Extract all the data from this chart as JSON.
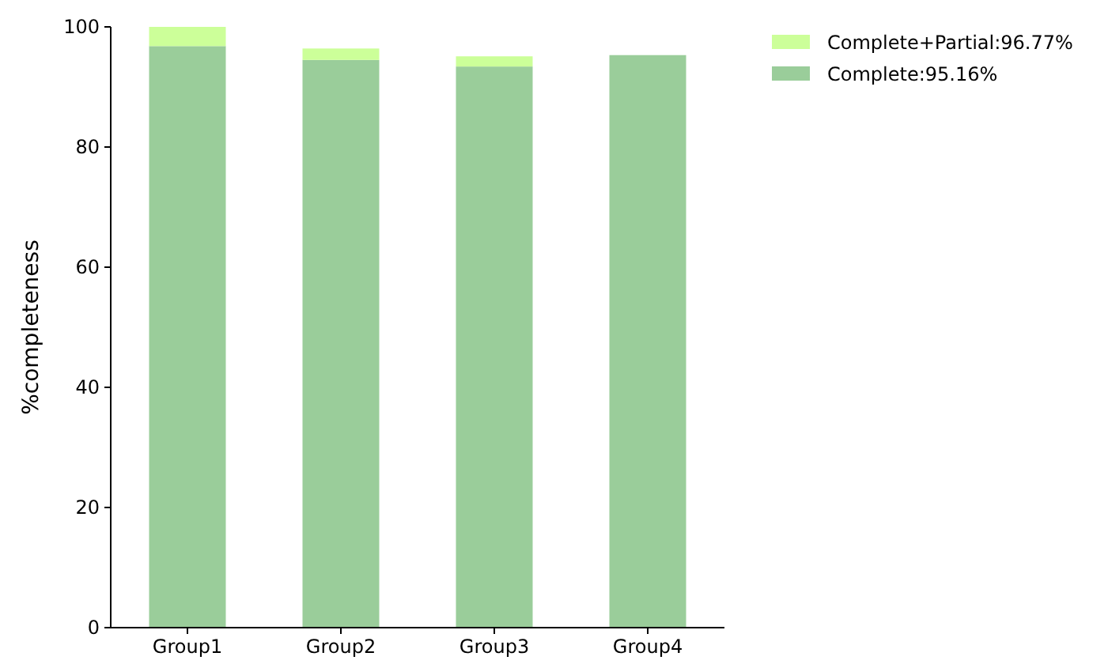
{
  "chart_data": {
    "type": "bar",
    "stacked": true,
    "ylabel": "%completeness",
    "categories": [
      "Group1",
      "Group2",
      "Group3",
      "Group4"
    ],
    "series": [
      {
        "name": "Complete:95.16%",
        "color": "#9acd9a",
        "values": [
          96.8,
          94.5,
          93.4,
          95.3
        ]
      },
      {
        "name": "Complete+Partial:96.77%",
        "color": "#ccff99",
        "values": [
          3.2,
          1.9,
          1.7,
          0
        ]
      }
    ],
    "ylim": [
      0,
      100
    ],
    "yticks": [
      0,
      20,
      40,
      60,
      80,
      100
    ],
    "grid": false,
    "legend": "top right"
  }
}
